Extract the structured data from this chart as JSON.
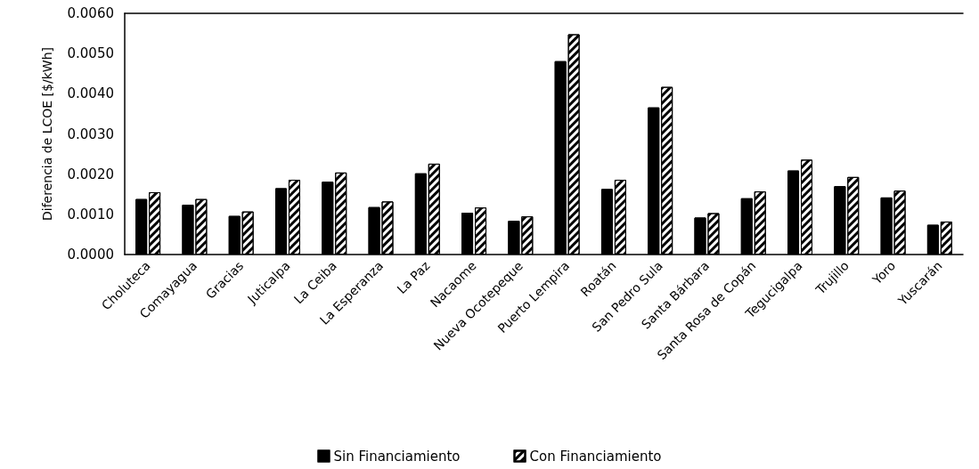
{
  "chart_data": {
    "type": "bar",
    "ylabel": "Diferencia de LCOE [$/kWh]",
    "categories": [
      "Choluteca",
      "Comayagua",
      "Gracias",
      "Juticalpa",
      "La Ceiba",
      "La Esperanza",
      "La Paz",
      "Nacaome",
      "Nueva Ocotepeque",
      "Puerto Lempira",
      "Roatán",
      "San Pedro Sula",
      "Santa Bárbara",
      "Santa Rosa de Copán",
      "Tegucigalpa",
      "Trujillo",
      "Yoro",
      "Yuscarán"
    ],
    "series": [
      {
        "name": "Sin Financiamiento",
        "color": "#000000",
        "values": [
          0.00138,
          0.00124,
          0.00096,
          0.00165,
          0.00181,
          0.00118,
          0.00202,
          0.00104,
          0.00084,
          0.00481,
          0.00163,
          0.00366,
          0.00092,
          0.0014,
          0.00209,
          0.0017,
          0.00142,
          0.00074
        ]
      },
      {
        "name": "Con Financiamiento",
        "color": "#ffffff",
        "values": [
          0.00155,
          0.00138,
          0.00107,
          0.00186,
          0.00204,
          0.00132,
          0.00226,
          0.00117,
          0.00095,
          0.00548,
          0.00186,
          0.00417,
          0.00103,
          0.00157,
          0.00236,
          0.00193,
          0.00159,
          0.00082
        ]
      }
    ],
    "ylim": [
      0,
      0.006
    ],
    "yticks": [
      {
        "value": 0,
        "label": "0.0000"
      },
      {
        "value": 0.001,
        "label": "0.0010"
      },
      {
        "value": 0.002,
        "label": "0.0020"
      },
      {
        "value": 0.003,
        "label": "0.0030"
      },
      {
        "value": 0.004,
        "label": "0.0040"
      },
      {
        "value": 0.005,
        "label": "0.0050"
      },
      {
        "value": 0.006,
        "label": "0.0060"
      }
    ],
    "grid": false,
    "legend": "bottom"
  }
}
